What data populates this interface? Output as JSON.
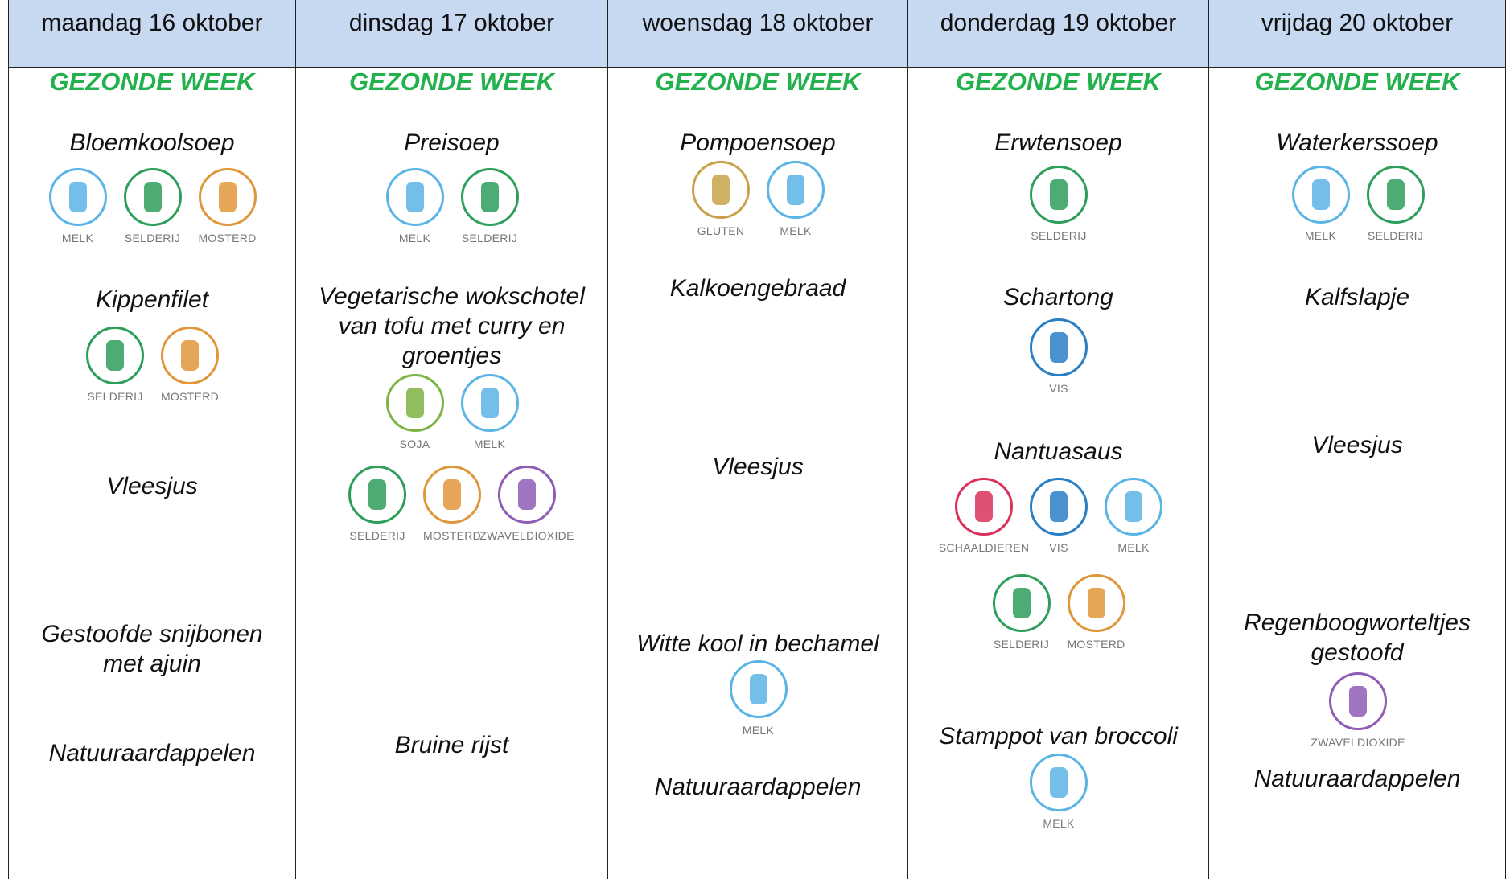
{
  "days": [
    {
      "date": "maandag 16 oktober",
      "tagline": "GEZONDE WEEK",
      "dishes": [
        {
          "name": [
            "Bloemkoolsoep"
          ],
          "allergens": [
            {
              "name": "MELK",
              "color": "#5ab4e5"
            },
            {
              "name": "SELDERIJ",
              "color": "#2e9e5b"
            },
            {
              "name": "MOSTERD",
              "color": "#e0963a"
            }
          ]
        },
        {
          "name": [
            "Kippenfilet"
          ],
          "allergens": [
            {
              "name": "SELDERIJ",
              "color": "#2e9e5b"
            },
            {
              "name": "MOSTERD",
              "color": "#e0963a"
            }
          ]
        },
        {
          "name": [
            "Vleesjus"
          ],
          "allergens": []
        },
        {
          "name": [
            "Gestoofde snijbonen",
            "met ajuin"
          ],
          "allergens": []
        },
        {
          "name": [
            "Natuuraardappelen"
          ],
          "allergens": []
        }
      ]
    },
    {
      "date": "dinsdag 17 oktober",
      "tagline": "GEZONDE WEEK",
      "dishes": [
        {
          "name": [
            "Preisoep"
          ],
          "allergens": [
            {
              "name": "MELK",
              "color": "#5ab4e5"
            },
            {
              "name": "SELDERIJ",
              "color": "#2e9e5b"
            }
          ]
        },
        {
          "name": [
            "Vegetarische wokschotel",
            "van tofu met curry en",
            "groentjes"
          ],
          "allergens": [
            {
              "name": "SOJA",
              "color": "#7cb342"
            },
            {
              "name": "MELK",
              "color": "#5ab4e5"
            },
            {
              "name": "SELDERIJ",
              "color": "#2e9e5b"
            },
            {
              "name": "MOSTERD",
              "color": "#e0963a"
            },
            {
              "name": "ZWAVELDIOXIDE",
              "color": "#8e5cb5"
            }
          ]
        },
        {
          "name": [
            "Bruine rijst"
          ],
          "allergens": []
        }
      ]
    },
    {
      "date": "woensdag 18 oktober",
      "tagline": "GEZONDE WEEK",
      "dishes": [
        {
          "name": [
            "Pompoensoep"
          ],
          "allergens": [
            {
              "name": "GLUTEN",
              "color": "#c8a24a"
            },
            {
              "name": "MELK",
              "color": "#5ab4e5"
            }
          ]
        },
        {
          "name": [
            "Kalkoengebraad"
          ],
          "allergens": []
        },
        {
          "name": [
            "Vleesjus"
          ],
          "allergens": []
        },
        {
          "name": [
            "Witte kool in bechamel"
          ],
          "allergens": [
            {
              "name": "MELK",
              "color": "#5ab4e5"
            }
          ]
        },
        {
          "name": [
            "Natuuraardappelen"
          ],
          "allergens": []
        }
      ]
    },
    {
      "date": "donderdag 19 oktober",
      "tagline": "GEZONDE WEEK",
      "dishes": [
        {
          "name": [
            "Erwtensoep"
          ],
          "allergens": [
            {
              "name": "SELDERIJ",
              "color": "#2e9e5b"
            }
          ]
        },
        {
          "name": [
            "Schartong"
          ],
          "allergens": [
            {
              "name": "VIS",
              "color": "#2a7fc4"
            }
          ]
        },
        {
          "name": [
            "Nantuasaus"
          ],
          "allergens": [
            {
              "name": "SCHAALDIEREN",
              "color": "#d9315a"
            },
            {
              "name": "VIS",
              "color": "#2a7fc4"
            },
            {
              "name": "MELK",
              "color": "#5ab4e5"
            },
            {
              "name": "SELDERIJ",
              "color": "#2e9e5b"
            },
            {
              "name": "MOSTERD",
              "color": "#e0963a"
            }
          ]
        },
        {
          "name": [
            "Stamppot van broccoli"
          ],
          "allergens": [
            {
              "name": "MELK",
              "color": "#5ab4e5"
            }
          ]
        }
      ]
    },
    {
      "date": "vrijdag 20 oktober",
      "tagline": "GEZONDE WEEK",
      "dishes": [
        {
          "name": [
            "Waterkerssoep"
          ],
          "allergens": [
            {
              "name": "MELK",
              "color": "#5ab4e5"
            },
            {
              "name": "SELDERIJ",
              "color": "#2e9e5b"
            }
          ]
        },
        {
          "name": [
            "Kalfslapje"
          ],
          "allergens": []
        },
        {
          "name": [
            "Vleesjus"
          ],
          "allergens": []
        },
        {
          "name": [
            "Regenboogworteltjes",
            "gestoofd"
          ],
          "allergens": [
            {
              "name": "ZWAVELDIOXIDE",
              "color": "#8e5cb5"
            }
          ]
        },
        {
          "name": [
            "Natuuraardappelen"
          ],
          "allergens": []
        }
      ]
    }
  ]
}
